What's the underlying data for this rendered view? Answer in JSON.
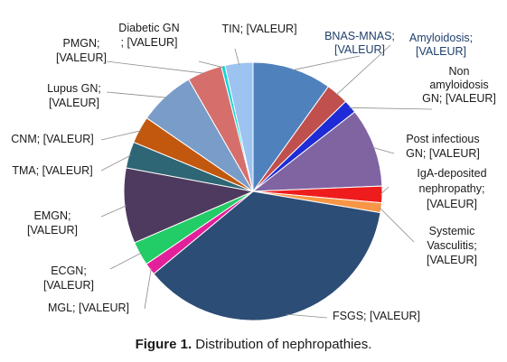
{
  "chart_data": {
    "type": "pie",
    "slices": [
      {
        "label_lines": [
          "BNAS-MNAS;",
          "[VALEUR]"
        ],
        "value": 10.5,
        "color": "#4f81bd"
      },
      {
        "label_lines": [
          "Amyloidosis;",
          "[VALEUR]"
        ],
        "value": 3.0,
        "color": "#c0504d"
      },
      {
        "label_lines": [
          "Non",
          "amyloidosis",
          "GN; [VALEUR]"
        ],
        "value": 1.8,
        "color": "#1e2bd6"
      },
      {
        "label_lines": [
          "Post infectious",
          "GN; [VALEUR]"
        ],
        "value": 10.5,
        "color": "#8064a2"
      },
      {
        "label_lines": [
          "IgA-deposited",
          "nephropathy;",
          "[VALEUR]"
        ],
        "value": 2.2,
        "color": "#ee1c1c"
      },
      {
        "label_lines": [
          "Systemic",
          "Vasculitis;",
          "[VALEUR]"
        ],
        "value": 1.3,
        "color": "#f79646"
      },
      {
        "label_lines": [
          "FSGS; [VALEUR]"
        ],
        "value": 38.5,
        "color": "#2c4d75"
      },
      {
        "label_lines": [
          "MGL; [VALEUR]"
        ],
        "value": 1.6,
        "color": "#e3209b"
      },
      {
        "label_lines": [
          "ECGN;",
          "[VALEUR]"
        ],
        "value": 3.2,
        "color": "#22cc66"
      },
      {
        "label_lines": [
          "EMGN;",
          "[VALEUR]"
        ],
        "value": 10.0,
        "color": "#4e3a5e"
      },
      {
        "label_lines": [
          "TMA; [VALEUR]"
        ],
        "value": 3.5,
        "color": "#2e6675"
      },
      {
        "label_lines": [
          "CNM; [VALEUR]"
        ],
        "value": 3.6,
        "color": "#c1580e"
      },
      {
        "label_lines": [
          "Lupus GN;",
          "[VALEUR]"
        ],
        "value": 7.5,
        "color": "#7a9cc8"
      },
      {
        "label_lines": [
          "PMGN;",
          "[VALEUR]"
        ],
        "value": 4.6,
        "color": "#d66f6c"
      },
      {
        "label_lines": [
          "Diabetic GN",
          "; [VALEUR]"
        ],
        "value": 0.5,
        "color": "#15d7d7"
      },
      {
        "label_lines": [
          "TIN; [VALEUR]"
        ],
        "value": 3.7,
        "color": "#9dc3f0"
      }
    ]
  },
  "caption": {
    "prefix": "Figure 1.",
    "text": " Distribution of nephropathies."
  }
}
